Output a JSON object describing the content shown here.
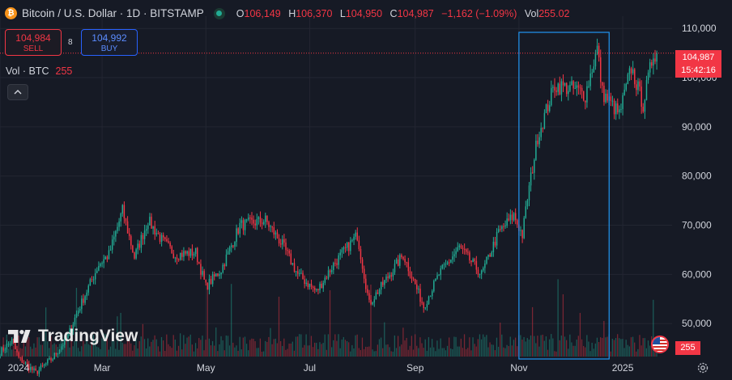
{
  "header": {
    "symbol_title": "Bitcoin / U.S. Dollar · 1D · BITSTAMP",
    "icon": "bitcoin-icon",
    "ohlc": [
      {
        "key": "O",
        "value": "106,149"
      },
      {
        "key": "H",
        "value": "106,370"
      },
      {
        "key": "L",
        "value": "104,950"
      },
      {
        "key": "C",
        "value": "104,987"
      },
      {
        "key": "",
        "value": "−1,162 (−1.09%)"
      },
      {
        "key": "Vol",
        "value": "255.02"
      }
    ]
  },
  "trade": {
    "sell_price": "104,984",
    "sell_label": "SELL",
    "buy_price": "104,992",
    "buy_label": "BUY",
    "spread": "8"
  },
  "volume_legend": {
    "label": "Vol · BTC",
    "value": "255"
  },
  "watermark": "TradingView",
  "last_price": {
    "price": "104,987",
    "countdown": "15:42:16"
  },
  "last_volume": "255",
  "colors": {
    "up": "#22ab94",
    "down": "#f23645",
    "background": "#161a25",
    "highlight": "#2196f3"
  },
  "chart_data": {
    "type": "candlestick",
    "x_ticks": [
      "2024",
      "Mar",
      "May",
      "Jul",
      "Sep",
      "Nov",
      "2025"
    ],
    "y_ticks": [
      50000,
      60000,
      70000,
      80000,
      90000,
      100000,
      110000
    ],
    "y_tick_labels": [
      "50,000",
      "60,000",
      "70,000",
      "80,000",
      "90,000",
      "100,000",
      "110,000"
    ],
    "ylim": [
      43300,
      112500
    ],
    "x_range": [
      "2024-01-01",
      "2025-01-30"
    ],
    "last_date": "2025-01-21",
    "highlight_range": [
      "2024-11-01",
      "2024-12-24"
    ],
    "grid": true,
    "close_series": [
      [
        "2024-01-01",
        44200
      ],
      [
        "2024-01-08",
        46500
      ],
      [
        "2024-01-12",
        43000
      ],
      [
        "2024-01-22",
        40000
      ],
      [
        "2024-02-01",
        43000
      ],
      [
        "2024-02-10",
        47500
      ],
      [
        "2024-02-15",
        52000
      ],
      [
        "2024-02-28",
        62000
      ],
      [
        "2024-03-05",
        64000
      ],
      [
        "2024-03-13",
        73000
      ],
      [
        "2024-03-20",
        63500
      ],
      [
        "2024-03-28",
        71000
      ],
      [
        "2024-04-05",
        67000
      ],
      [
        "2024-04-13",
        64000
      ],
      [
        "2024-04-25",
        64500
      ],
      [
        "2024-05-01",
        57500
      ],
      [
        "2024-05-10",
        61000
      ],
      [
        "2024-05-21",
        70000
      ],
      [
        "2024-06-05",
        71000
      ],
      [
        "2024-06-15",
        66000
      ],
      [
        "2024-06-24",
        60000
      ],
      [
        "2024-07-05",
        56500
      ],
      [
        "2024-07-15",
        62000
      ],
      [
        "2024-07-29",
        68000
      ],
      [
        "2024-08-05",
        54000
      ],
      [
        "2024-08-15",
        59000
      ],
      [
        "2024-08-25",
        64000
      ],
      [
        "2024-09-06",
        53500
      ],
      [
        "2024-09-15",
        60000
      ],
      [
        "2024-09-27",
        65500
      ],
      [
        "2024-10-10",
        60000
      ],
      [
        "2024-10-20",
        68500
      ],
      [
        "2024-10-29",
        72000
      ],
      [
        "2024-11-03",
        68000
      ],
      [
        "2024-11-06",
        75500
      ],
      [
        "2024-11-12",
        88000
      ],
      [
        "2024-11-22",
        98500
      ],
      [
        "2024-12-05",
        97500
      ],
      [
        "2024-12-10",
        96500
      ],
      [
        "2024-12-17",
        106000
      ],
      [
        "2024-12-20",
        97000
      ],
      [
        "2024-12-30",
        92500
      ],
      [
        "2025-01-06",
        102000
      ],
      [
        "2025-01-13",
        94500
      ],
      [
        "2025-01-19",
        105000
      ],
      [
        "2025-01-21",
        104987
      ]
    ]
  }
}
